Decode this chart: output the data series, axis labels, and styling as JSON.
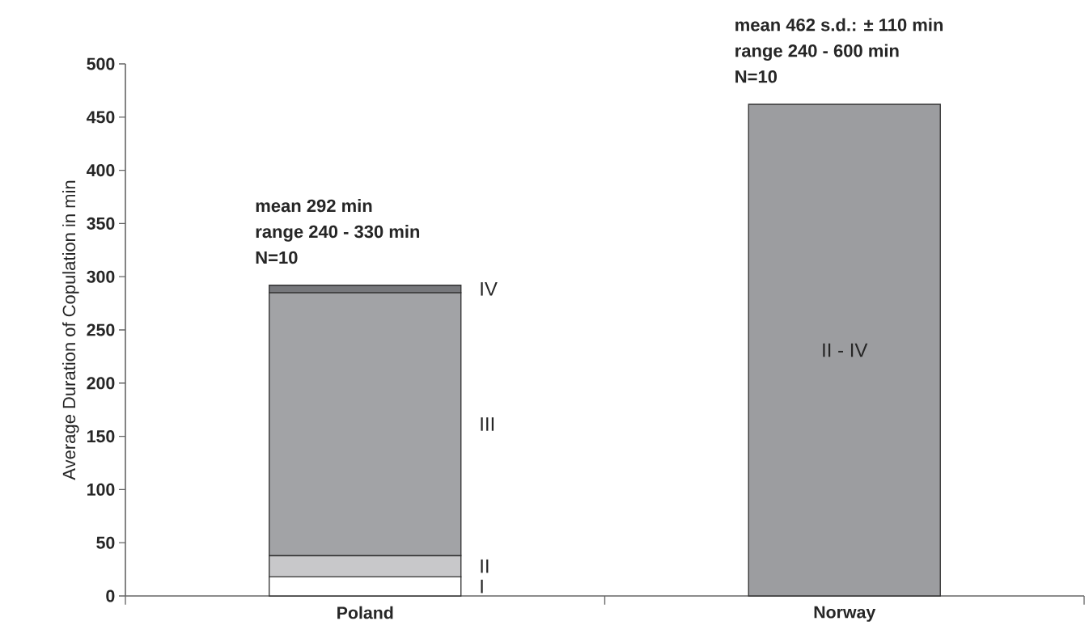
{
  "chart_data": {
    "type": "bar",
    "stacked": true,
    "ylabel": "Average Duration of Copulation in min",
    "categories": [
      "Poland",
      "Norway"
    ],
    "series": [
      {
        "name": "I",
        "color": "#ffffff",
        "values": [
          18,
          null
        ]
      },
      {
        "name": "II",
        "color": "#c8c8ca",
        "values": [
          20,
          null
        ]
      },
      {
        "name": "III",
        "color": "#a2a3a6",
        "values": [
          247,
          null
        ]
      },
      {
        "name": "IV",
        "color": "#77787c",
        "values": [
          7,
          null
        ]
      },
      {
        "name": "II - IV",
        "color": "#9c9da0",
        "values": [
          null,
          462
        ]
      }
    ],
    "ylim": [
      0,
      500
    ],
    "yticks": [
      0,
      50,
      100,
      150,
      200,
      250,
      300,
      350,
      400,
      450,
      500
    ],
    "grid": false,
    "annotations": [
      "mean 292 min",
      "range 240 - 330 min",
      "N=10",
      "mean 462 s.d.: ± 110 min",
      "range 240 - 600 min",
      "N=10"
    ]
  }
}
